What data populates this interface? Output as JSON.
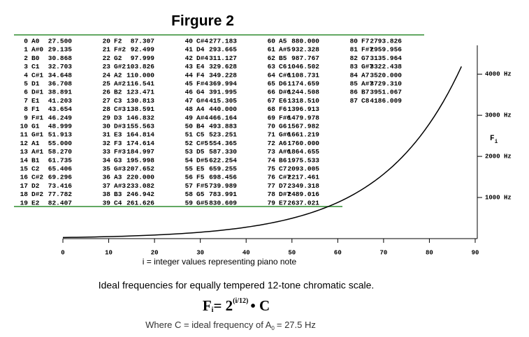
{
  "chart_data": {
    "type": "line",
    "title": "Firgure 2",
    "x_label": "i = integer values representing piano note",
    "y_label": {
      "text": "F",
      "sub": "i"
    },
    "caption": "Ideal frequencies for equally tempered 12-tone chromatic scale.",
    "formula": {
      "f": "F",
      "sub": "i",
      "eq": "= 2",
      "exp": "(i/12)",
      "tail": "• C"
    },
    "note": {
      "text": "Where C = ideal frequency of A",
      "sub": "0",
      "tail": "= 27.5 Hz"
    },
    "xlim": [
      0,
      90
    ],
    "xticks": [
      0,
      10,
      20,
      30,
      40,
      50,
      60,
      70,
      80,
      90
    ],
    "ylim": [
      0,
      4700
    ],
    "yticks": [
      {
        "value": 1000,
        "label": "1000 Hz"
      },
      {
        "value": 2000,
        "label": "2000 Hz"
      },
      {
        "value": 3000,
        "label": "3000 Hz"
      },
      {
        "value": 4000,
        "label": "4000 Hz"
      }
    ],
    "color": "#000000",
    "x": [
      0,
      1,
      2,
      3,
      4,
      5,
      6,
      7,
      8,
      9,
      10,
      11,
      12,
      13,
      14,
      15,
      16,
      17,
      18,
      19,
      20,
      21,
      22,
      23,
      24,
      25,
      26,
      27,
      28,
      29,
      30,
      31,
      32,
      33,
      34,
      35,
      36,
      37,
      38,
      39,
      40,
      41,
      42,
      43,
      44,
      45,
      46,
      47,
      48,
      49,
      50,
      51,
      52,
      53,
      54,
      55,
      56,
      57,
      58,
      59,
      60,
      61,
      62,
      63,
      64,
      65,
      66,
      67,
      68,
      69,
      70,
      71,
      72,
      73,
      74,
      75,
      76,
      77,
      78,
      79,
      80,
      81,
      82,
      83,
      84,
      85,
      86,
      87
    ],
    "names": [
      "A0",
      "A#0",
      "B0",
      "C1",
      "C#1",
      "D1",
      "D#1",
      "E1",
      "F1",
      "F#1",
      "G1",
      "G#1",
      "A1",
      "A#1",
      "B1",
      "C2",
      "C#2",
      "D2",
      "D#2",
      "E2",
      "F2",
      "F#2",
      "G2",
      "G#2",
      "A2",
      "A#2",
      "B2",
      "C3",
      "C#3",
      "D3",
      "D#3",
      "E3",
      "F3",
      "F#3",
      "G3",
      "G#3",
      "A3",
      "A#3",
      "B3",
      "C4",
      "C#4",
      "D4",
      "D#4",
      "E4",
      "F4",
      "F#4",
      "G4",
      "G#4",
      "A4",
      "A#4",
      "B4",
      "C5",
      "C#5",
      "D5",
      "D#5",
      "E5",
      "F5",
      "F#5",
      "G5",
      "G#5",
      "A5",
      "A#5",
      "B5",
      "C6",
      "C#6",
      "D6",
      "D#6",
      "E6",
      "F6",
      "F#6",
      "G6",
      "G#6",
      "A6",
      "A#6",
      "B6",
      "C7",
      "C#7",
      "D7",
      "D#7",
      "E7",
      "F7",
      "F#7",
      "G7",
      "G#7",
      "A7",
      "A#7",
      "B7",
      "C8"
    ],
    "values": [
      27.5,
      29.135,
      30.868,
      32.703,
      34.648,
      36.708,
      38.891,
      41.203,
      43.654,
      46.249,
      48.999,
      51.913,
      55,
      58.27,
      61.735,
      65.406,
      69.296,
      73.416,
      77.782,
      82.407,
      87.307,
      92.499,
      97.999,
      103.826,
      110,
      116.541,
      123.471,
      130.813,
      138.591,
      146.832,
      155.563,
      164.814,
      174.614,
      184.997,
      195.998,
      207.652,
      220,
      233.082,
      246.942,
      261.626,
      277.183,
      293.665,
      311.127,
      329.628,
      349.228,
      369.994,
      391.995,
      415.305,
      440,
      466.164,
      493.883,
      523.251,
      554.365,
      587.33,
      622.254,
      659.255,
      698.456,
      739.989,
      783.991,
      830.609,
      880,
      932.328,
      987.767,
      1046.502,
      1108.731,
      1174.659,
      1244.508,
      1318.51,
      1396.913,
      1479.978,
      1567.982,
      1661.219,
      1760,
      1864.655,
      1975.533,
      2093.005,
      2217.461,
      2349.318,
      2489.016,
      2637.021,
      2793.826,
      2959.956,
      3135.964,
      3322.438,
      3520,
      3729.31,
      3951.067,
      4186.009
    ],
    "value_labels": [
      "27.500",
      "29.135",
      "30.868",
      "32.703",
      "34.648",
      "36.708",
      "38.891",
      "41.203",
      "43.654",
      "46.249",
      "48.999",
      "51.913",
      "55.000",
      "58.270",
      "61.735",
      "65.406",
      "69.296",
      "73.416",
      "77.782",
      "82.407",
      "87.307",
      "92.499",
      "97.999",
      "103.826",
      "110.000",
      "116.541",
      "123.471",
      "130.813",
      "138.591",
      "146.832",
      "155.563",
      "164.814",
      "174.614",
      "184.997",
      "195.998",
      "207.652",
      "220.000",
      "233.082",
      "246.942",
      "261.626",
      "277.183",
      "293.665",
      "311.127",
      "329.628",
      "349.228",
      "369.994",
      "391.995",
      "415.305",
      "440.000",
      "466.164",
      "493.883",
      "523.251",
      "554.365",
      "587.330",
      "622.254",
      "659.255",
      "698.456",
      "739.989",
      "783.991",
      "830.609",
      "880.000",
      "932.328",
      "987.767",
      "1046.502",
      "1108.731",
      "1174.659",
      "1244.508",
      "1318.510",
      "1396.913",
      "1479.978",
      "1567.982",
      "1661.219",
      "1760.000",
      "1864.655",
      "1975.533",
      "2093.005",
      "2217.461",
      "2349.318",
      "2489.016",
      "2637.021",
      "2793.826",
      "2959.956",
      "3135.964",
      "3322.438",
      "3520.000",
      "3729.310",
      "3951.067",
      "4186.009"
    ]
  }
}
